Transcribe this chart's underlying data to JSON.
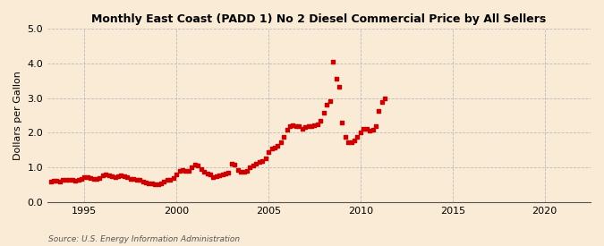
{
  "title": "Monthly East Coast (PADD 1) No 2 Diesel Commercial Price by All Sellers",
  "ylabel": "Dollars per Gallon",
  "source": "Source: U.S. Energy Information Administration",
  "background_color": "#faebd7",
  "plot_bg_color": "#faebd7",
  "line_color": "#cc0000",
  "marker": "s",
  "markersize": 2.8,
  "ylim": [
    0.0,
    5.0
  ],
  "xlim_start": 1993.0,
  "xlim_end": 2022.5,
  "xticks": [
    1995,
    2000,
    2005,
    2010,
    2015,
    2020
  ],
  "yticks": [
    0.0,
    1.0,
    2.0,
    3.0,
    4.0,
    5.0
  ],
  "data": [
    [
      1993.17,
      0.6
    ],
    [
      1993.33,
      0.62
    ],
    [
      1993.5,
      0.61
    ],
    [
      1993.67,
      0.6
    ],
    [
      1993.83,
      0.63
    ],
    [
      1994.0,
      0.65
    ],
    [
      1994.17,
      0.65
    ],
    [
      1994.33,
      0.63
    ],
    [
      1994.5,
      0.62
    ],
    [
      1994.67,
      0.63
    ],
    [
      1994.83,
      0.67
    ],
    [
      1995.0,
      0.72
    ],
    [
      1995.17,
      0.72
    ],
    [
      1995.33,
      0.7
    ],
    [
      1995.5,
      0.68
    ],
    [
      1995.67,
      0.67
    ],
    [
      1995.83,
      0.7
    ],
    [
      1996.0,
      0.76
    ],
    [
      1996.17,
      0.8
    ],
    [
      1996.33,
      0.78
    ],
    [
      1996.5,
      0.75
    ],
    [
      1996.67,
      0.73
    ],
    [
      1996.83,
      0.74
    ],
    [
      1997.0,
      0.76
    ],
    [
      1997.17,
      0.74
    ],
    [
      1997.33,
      0.72
    ],
    [
      1997.5,
      0.68
    ],
    [
      1997.67,
      0.66
    ],
    [
      1997.83,
      0.65
    ],
    [
      1998.0,
      0.63
    ],
    [
      1998.17,
      0.6
    ],
    [
      1998.33,
      0.57
    ],
    [
      1998.5,
      0.55
    ],
    [
      1998.67,
      0.53
    ],
    [
      1998.83,
      0.52
    ],
    [
      1999.0,
      0.52
    ],
    [
      1999.17,
      0.55
    ],
    [
      1999.33,
      0.6
    ],
    [
      1999.5,
      0.63
    ],
    [
      1999.67,
      0.65
    ],
    [
      1999.83,
      0.7
    ],
    [
      2000.0,
      0.8
    ],
    [
      2000.17,
      0.9
    ],
    [
      2000.33,
      0.92
    ],
    [
      2000.5,
      0.9
    ],
    [
      2000.67,
      0.9
    ],
    [
      2000.83,
      1.0
    ],
    [
      2001.0,
      1.08
    ],
    [
      2001.17,
      1.05
    ],
    [
      2001.33,
      0.95
    ],
    [
      2001.5,
      0.87
    ],
    [
      2001.67,
      0.83
    ],
    [
      2001.83,
      0.8
    ],
    [
      2002.0,
      0.72
    ],
    [
      2002.17,
      0.75
    ],
    [
      2002.33,
      0.78
    ],
    [
      2002.5,
      0.8
    ],
    [
      2002.67,
      0.82
    ],
    [
      2002.83,
      0.85
    ],
    [
      2003.0,
      1.1
    ],
    [
      2003.17,
      1.08
    ],
    [
      2003.33,
      0.93
    ],
    [
      2003.5,
      0.88
    ],
    [
      2003.67,
      0.87
    ],
    [
      2003.83,
      0.9
    ],
    [
      2004.0,
      1.0
    ],
    [
      2004.17,
      1.05
    ],
    [
      2004.33,
      1.1
    ],
    [
      2004.5,
      1.15
    ],
    [
      2004.67,
      1.18
    ],
    [
      2004.83,
      1.25
    ],
    [
      2005.0,
      1.45
    ],
    [
      2005.17,
      1.55
    ],
    [
      2005.33,
      1.58
    ],
    [
      2005.5,
      1.62
    ],
    [
      2005.67,
      1.72
    ],
    [
      2005.83,
      1.88
    ],
    [
      2006.0,
      2.08
    ],
    [
      2006.17,
      2.18
    ],
    [
      2006.33,
      2.22
    ],
    [
      2006.5,
      2.2
    ],
    [
      2006.67,
      2.18
    ],
    [
      2006.83,
      2.12
    ],
    [
      2007.0,
      2.15
    ],
    [
      2007.17,
      2.18
    ],
    [
      2007.33,
      2.2
    ],
    [
      2007.5,
      2.22
    ],
    [
      2007.67,
      2.25
    ],
    [
      2007.83,
      2.35
    ],
    [
      2008.0,
      2.58
    ],
    [
      2008.17,
      2.82
    ],
    [
      2008.33,
      2.92
    ],
    [
      2008.5,
      4.05
    ],
    [
      2008.67,
      3.55
    ],
    [
      2008.83,
      3.33
    ],
    [
      2009.0,
      2.28
    ],
    [
      2009.17,
      1.88
    ],
    [
      2009.33,
      1.72
    ],
    [
      2009.5,
      1.72
    ],
    [
      2009.67,
      1.78
    ],
    [
      2009.83,
      1.88
    ],
    [
      2010.0,
      2.02
    ],
    [
      2010.17,
      2.12
    ],
    [
      2010.33,
      2.1
    ],
    [
      2010.5,
      2.05
    ],
    [
      2010.67,
      2.08
    ],
    [
      2010.83,
      2.18
    ],
    [
      2011.0,
      2.62
    ],
    [
      2011.17,
      2.88
    ],
    [
      2011.33,
      3.0
    ]
  ]
}
